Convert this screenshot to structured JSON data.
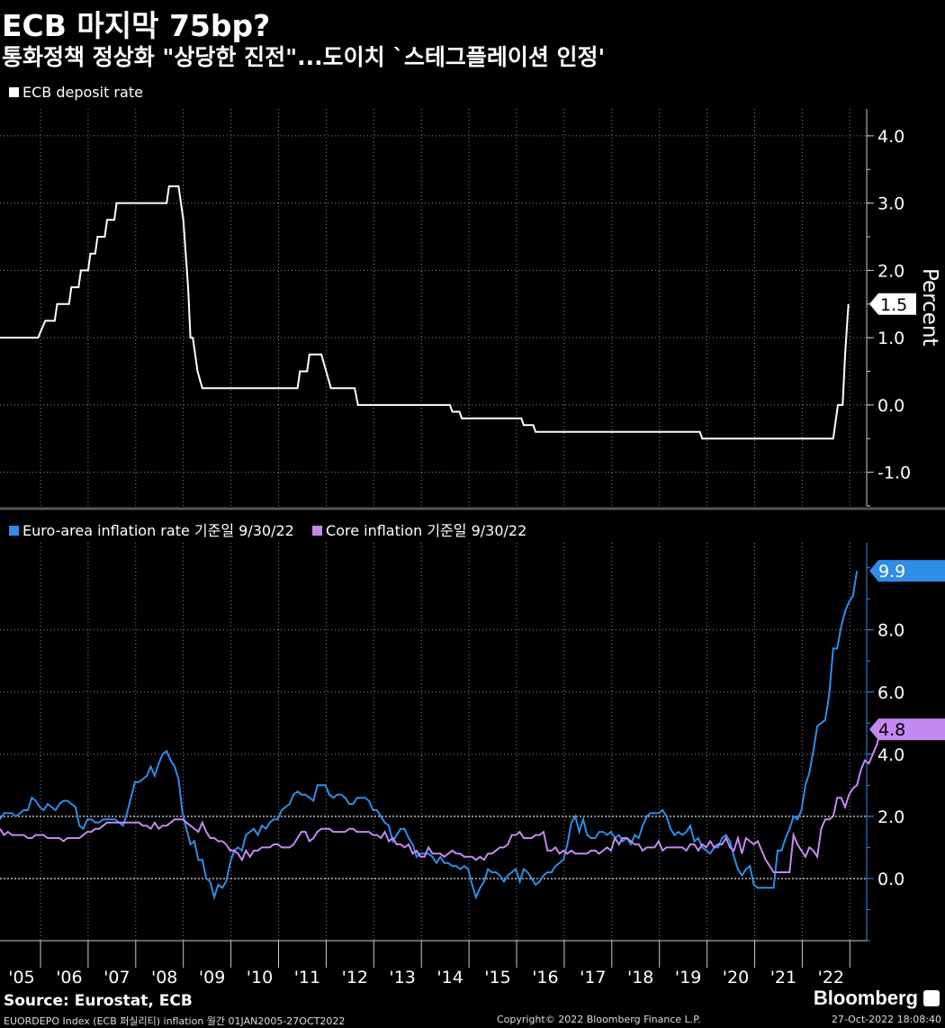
{
  "header": {
    "title": "ECB 마지막 75bp?",
    "subtitle": "통화정책 정상화 \"상당한 진전\"...도이치 `스테그플레이션 인정'"
  },
  "footer": {
    "source": "Source:  Eurostat, ECB",
    "ticker_line": "EUORDEPO Index (ECB 퍼실리티) inflation  월간 01JAN2005-27OCT2022",
    "copyright": "Copyright© 2022 Bloomberg Finance L.P.",
    "timestamp": "27-Oct-2022 18:08:40",
    "brand": "Bloomberg"
  },
  "colors": {
    "deposit": "#ffffff",
    "headline": "#2e8de8",
    "core": "#c389f0",
    "grid": "#888888",
    "background": "#000000"
  },
  "chart_data": [
    {
      "type": "line",
      "legend": "ECB deposit rate",
      "ylabel": "Percent",
      "ylim": [
        -1.5,
        4.4
      ],
      "yticks": [
        4.0,
        3.0,
        2.0,
        1.0,
        0.0,
        -1.0
      ],
      "last_value_label": "1.5",
      "grid": true,
      "series": [
        {
          "name": "ECB deposit rate",
          "points": [
            [
              2005.0,
              1.0
            ],
            [
              2005.8,
              1.0
            ],
            [
              2005.95,
              1.25
            ],
            [
              2006.15,
              1.25
            ],
            [
              2006.2,
              1.5
            ],
            [
              2006.45,
              1.5
            ],
            [
              2006.5,
              1.75
            ],
            [
              2006.65,
              1.75
            ],
            [
              2006.7,
              2.0
            ],
            [
              2006.85,
              2.0
            ],
            [
              2006.9,
              2.25
            ],
            [
              2007.0,
              2.25
            ],
            [
              2007.05,
              2.5
            ],
            [
              2007.2,
              2.5
            ],
            [
              2007.25,
              2.75
            ],
            [
              2007.4,
              2.75
            ],
            [
              2007.45,
              3.0
            ],
            [
              2008.5,
              3.0
            ],
            [
              2008.55,
              3.25
            ],
            [
              2008.75,
              3.25
            ],
            [
              2008.85,
              2.75
            ],
            [
              2008.95,
              1.75
            ],
            [
              2009.0,
              1.0
            ],
            [
              2009.05,
              1.0
            ],
            [
              2009.15,
              0.5
            ],
            [
              2009.25,
              0.25
            ],
            [
              2011.25,
              0.25
            ],
            [
              2011.3,
              0.5
            ],
            [
              2011.45,
              0.5
            ],
            [
              2011.5,
              0.75
            ],
            [
              2011.75,
              0.75
            ],
            [
              2011.85,
              0.5
            ],
            [
              2011.95,
              0.25
            ],
            [
              2012.45,
              0.25
            ],
            [
              2012.52,
              0.0
            ],
            [
              2014.45,
              0.0
            ],
            [
              2014.5,
              -0.1
            ],
            [
              2014.65,
              -0.1
            ],
            [
              2014.7,
              -0.2
            ],
            [
              2015.95,
              -0.2
            ],
            [
              2016.0,
              -0.3
            ],
            [
              2016.2,
              -0.3
            ],
            [
              2016.25,
              -0.4
            ],
            [
              2019.7,
              -0.4
            ],
            [
              2019.75,
              -0.5
            ],
            [
              2022.5,
              -0.5
            ],
            [
              2022.6,
              0.0
            ],
            [
              2022.7,
              0.0
            ],
            [
              2022.75,
              0.75
            ],
            [
              2022.82,
              1.5
            ]
          ]
        }
      ]
    },
    {
      "type": "line",
      "ylim": [
        -2.0,
        10.8
      ],
      "yticks": [
        8.0,
        6.0,
        4.0,
        2.0,
        0.0
      ],
      "x_tick_labels": [
        "'05",
        "'06",
        "'07",
        "'08",
        "'09",
        "'10",
        "'11",
        "'12",
        "'13",
        "'14",
        "'15",
        "'16",
        "'17",
        "'18",
        "'19",
        "'20",
        "'21",
        "'22"
      ],
      "grid": true,
      "legend_position": "top-left",
      "series": [
        {
          "name": "Euro-area inflation rate",
          "legend": "Euro-area inflation rate 기준일 9/30/22",
          "last_value_label": "9.9",
          "x_start": 2005.0,
          "step_months": 1,
          "values": [
            1.9,
            2.1,
            2.1,
            2.1,
            2.0,
            2.1,
            2.2,
            2.2,
            2.6,
            2.5,
            2.3,
            2.2,
            2.4,
            2.3,
            2.2,
            2.4,
            2.5,
            2.5,
            2.4,
            2.3,
            1.7,
            1.6,
            1.9,
            1.9,
            1.8,
            1.8,
            1.9,
            1.9,
            1.9,
            1.9,
            1.8,
            1.7,
            2.1,
            2.6,
            3.1,
            3.1,
            3.2,
            3.3,
            3.6,
            3.3,
            3.7,
            4.0,
            4.1,
            3.8,
            3.6,
            3.2,
            2.1,
            1.6,
            1.1,
            1.2,
            0.6,
            0.6,
            0.0,
            -0.1,
            -0.6,
            -0.2,
            -0.3,
            -0.1,
            0.5,
            0.9,
            1.0,
            0.9,
            1.4,
            1.5,
            1.6,
            1.4,
            1.7,
            1.6,
            1.8,
            1.9,
            1.9,
            2.2,
            2.3,
            2.4,
            2.7,
            2.8,
            2.7,
            2.7,
            2.6,
            2.5,
            3.0,
            3.0,
            3.0,
            2.7,
            2.6,
            2.7,
            2.7,
            2.6,
            2.4,
            2.4,
            2.6,
            2.6,
            2.6,
            2.5,
            2.2,
            2.2,
            2.0,
            1.8,
            1.7,
            1.2,
            1.4,
            1.6,
            1.6,
            1.3,
            1.1,
            0.7,
            0.8,
            0.8,
            0.8,
            0.7,
            0.5,
            0.7,
            0.5,
            0.5,
            0.4,
            0.4,
            0.3,
            0.4,
            0.3,
            -0.2,
            -0.6,
            -0.3,
            -0.1,
            0.3,
            0.2,
            0.2,
            0.1,
            -0.1,
            0.1,
            0.2,
            0.3,
            -0.1,
            0.3,
            0.2,
            0.0,
            -0.2,
            -0.1,
            0.1,
            0.2,
            0.2,
            0.4,
            0.5,
            0.6,
            1.1,
            1.8,
            2.0,
            1.5,
            1.9,
            1.4,
            1.3,
            1.3,
            1.5,
            1.5,
            1.4,
            1.5,
            1.3,
            1.4,
            1.2,
            1.3,
            1.1,
            1.4,
            1.3,
            1.7,
            2.0,
            2.1,
            2.1,
            2.1,
            2.2,
            2.0,
            1.6,
            1.4,
            1.5,
            1.4,
            1.5,
            1.7,
            1.2,
            1.3,
            1.0,
            0.9,
            0.8,
            1.0,
            1.0,
            1.3,
            1.4,
            1.2,
            0.7,
            0.3,
            0.1,
            0.3,
            0.4,
            -0.2,
            -0.3,
            -0.3,
            -0.3,
            -0.3,
            -0.3,
            0.9,
            0.9,
            1.3,
            1.6,
            2.0,
            1.9,
            2.2,
            3.0,
            3.4,
            4.1,
            4.9,
            5.0,
            5.1,
            5.9,
            7.4,
            7.4,
            8.1,
            8.6,
            8.9,
            9.1,
            9.9
          ]
        },
        {
          "name": "Core inflation",
          "legend": "Core inflation 기준일 9/30/22",
          "last_value_label": "4.8",
          "x_start": 2005.0,
          "step_months": 1,
          "values": [
            1.6,
            1.4,
            1.5,
            1.4,
            1.4,
            1.4,
            1.4,
            1.3,
            1.3,
            1.4,
            1.4,
            1.4,
            1.3,
            1.3,
            1.3,
            1.3,
            1.2,
            1.3,
            1.3,
            1.3,
            1.3,
            1.4,
            1.5,
            1.5,
            1.6,
            1.6,
            1.7,
            1.8,
            1.8,
            1.8,
            1.8,
            1.8,
            1.8,
            1.8,
            1.8,
            1.8,
            1.7,
            1.7,
            1.6,
            1.8,
            1.6,
            1.7,
            1.7,
            1.8,
            1.9,
            1.9,
            1.9,
            1.8,
            1.7,
            1.6,
            1.5,
            1.8,
            1.5,
            1.3,
            1.3,
            1.2,
            1.2,
            1.1,
            0.9,
            0.9,
            0.8,
            0.6,
            0.9,
            0.7,
            0.9,
            0.9,
            1.0,
            1.0,
            1.0,
            1.1,
            1.1,
            1.0,
            1.0,
            1.0,
            1.1,
            1.3,
            1.5,
            1.5,
            1.2,
            1.3,
            1.5,
            1.6,
            1.6,
            1.6,
            1.5,
            1.5,
            1.5,
            1.5,
            1.6,
            1.6,
            1.5,
            1.5,
            1.5,
            1.5,
            1.4,
            1.4,
            1.3,
            1.5,
            1.2,
            1.3,
            1.1,
            1.1,
            1.0,
            1.1,
            0.8,
            0.9,
            0.7,
            0.7,
            1.0,
            0.8,
            0.8,
            0.8,
            0.7,
            0.8,
            0.9,
            0.8,
            0.8,
            0.7,
            0.7,
            0.7,
            0.6,
            0.7,
            0.6,
            0.8,
            0.8,
            0.9,
            1.0,
            1.0,
            1.1,
            1.4,
            1.4,
            1.5,
            1.3,
            1.3,
            1.3,
            1.4,
            1.4,
            1.5,
            0.9,
            0.9,
            1.0,
            0.8,
            0.9,
            0.8,
            0.9,
            0.8,
            0.8,
            0.8,
            0.8,
            0.9,
            0.9,
            0.8,
            0.9,
            1.0,
            0.9,
            1.3,
            1.1,
            1.3,
            1.3,
            1.2,
            1.1,
            1.1,
            0.9,
            1.0,
            1.0,
            1.0,
            1.2,
            0.9,
            1.0,
            1.0,
            1.0,
            1.0,
            1.0,
            0.9,
            1.1,
            1.1,
            0.9,
            1.1,
            1.0,
            1.2,
            1.0,
            1.1,
            1.1,
            1.3,
            1.0,
            0.9,
            1.3,
            0.8,
            1.3,
            1.2,
            1.1,
            1.2,
            0.9,
            0.6,
            0.4,
            0.2,
            0.2,
            0.2,
            0.2,
            0.2,
            1.4,
            1.1,
            0.9,
            0.7,
            1.0,
            0.9,
            0.7,
            1.6,
            1.9,
            1.9,
            2.0,
            2.6,
            2.6,
            2.3,
            2.7,
            2.9,
            3.0,
            3.5,
            3.8,
            3.7,
            4.0,
            4.3,
            4.8
          ]
        }
      ]
    }
  ]
}
